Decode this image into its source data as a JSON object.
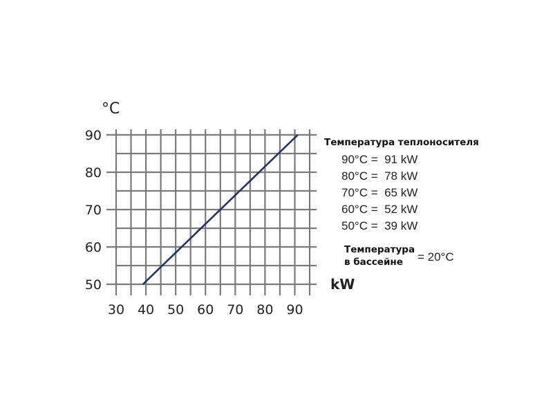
{
  "chart_data": {
    "type": "line",
    "x": [
      39,
      91
    ],
    "series": [
      {
        "values": [
          50,
          90
        ],
        "color": "#1f3170"
      }
    ],
    "xlabel": "kW",
    "ylabel": "°C",
    "xlim": [
      30,
      95
    ],
    "ylim": [
      50,
      90
    ],
    "x_ticks": [
      "30",
      "40",
      "50",
      "60",
      "70",
      "80",
      "90"
    ],
    "y_ticks": [
      "90",
      "80",
      "70",
      "60",
      "50"
    ],
    "grid": true,
    "grid_color": "#7a7a7a"
  },
  "legend": {
    "title": "Температура теплоносителя",
    "items": [
      "90°C =  91 kW",
      "80°C =  78 kW",
      "70°C =  65 kW",
      "60°C =  52 kW",
      "50°C =  39 kW"
    ]
  },
  "pool": {
    "label_line1": "Температура",
    "label_line2": "в бассейне",
    "value": "= 20°C"
  }
}
